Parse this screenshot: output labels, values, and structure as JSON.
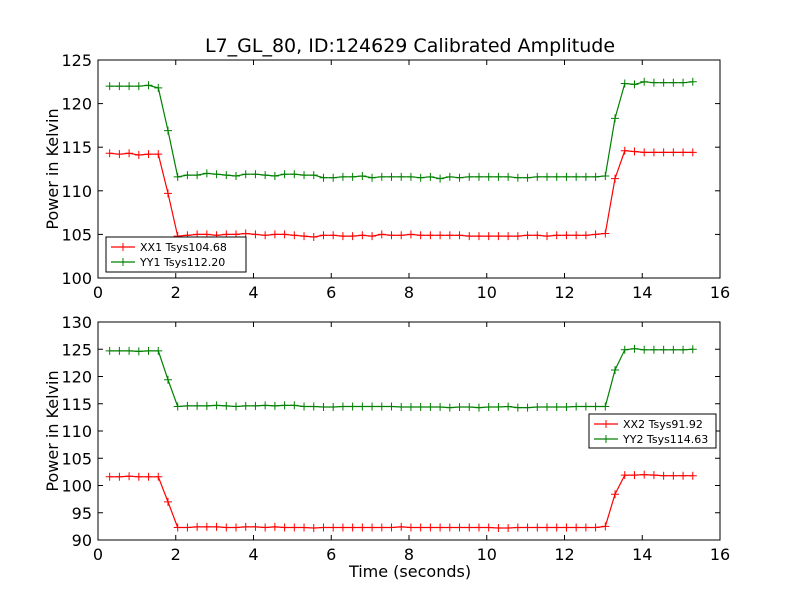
{
  "chart_data": {
    "type": "line",
    "title": "L7_GL_80, ID:124629 Calibrated Amplitude",
    "xlabel": "Time (seconds)",
    "grid": false,
    "x": [
      0.3,
      0.55,
      0.8,
      1.05,
      1.3,
      1.55,
      1.8,
      2.05,
      2.3,
      2.55,
      2.8,
      3.05,
      3.3,
      3.55,
      3.8,
      4.05,
      4.3,
      4.55,
      4.8,
      5.05,
      5.3,
      5.55,
      5.8,
      6.05,
      6.3,
      6.55,
      6.8,
      7.05,
      7.3,
      7.55,
      7.8,
      8.05,
      8.3,
      8.55,
      8.8,
      9.05,
      9.3,
      9.55,
      9.8,
      10.05,
      10.3,
      10.55,
      10.8,
      11.05,
      11.3,
      11.55,
      11.8,
      12.05,
      12.3,
      12.55,
      12.8,
      13.05,
      13.3,
      13.55,
      13.8,
      14.05,
      14.3,
      14.55,
      14.8,
      15.05,
      15.3
    ],
    "panels": [
      {
        "ylabel": "Power in Kelvin",
        "xlim": [
          0,
          16
        ],
        "ylim": [
          100,
          125
        ],
        "xticks": [
          0,
          2,
          4,
          6,
          8,
          10,
          12,
          14,
          16
        ],
        "yticks": [
          100,
          105,
          110,
          115,
          120,
          125
        ],
        "legend_position": "lower-left",
        "series": [
          {
            "name": "XX1 Tsys104.68",
            "color": "#ff0000",
            "values": [
              114.3,
              114.2,
              114.3,
              114.1,
              114.2,
              114.2,
              109.7,
              104.8,
              104.9,
              105.0,
              105.0,
              104.9,
              105.0,
              105.0,
              105.1,
              105.0,
              104.9,
              105.0,
              105.0,
              104.9,
              104.8,
              104.7,
              104.9,
              104.9,
              104.8,
              104.8,
              104.9,
              104.8,
              105.0,
              104.9,
              104.9,
              105.0,
              104.9,
              104.9,
              104.9,
              104.9,
              104.9,
              104.8,
              104.8,
              104.8,
              104.8,
              104.8,
              104.8,
              104.9,
              104.9,
              104.8,
              104.9,
              104.9,
              104.9,
              104.9,
              105.0,
              105.1,
              111.4,
              114.6,
              114.5,
              114.4,
              114.4,
              114.4,
              114.4,
              114.4,
              114.4
            ]
          },
          {
            "name": "YY1 Tsys112.20",
            "color": "#008000",
            "values": [
              122.0,
              122.0,
              122.0,
              122.0,
              122.1,
              121.8,
              116.9,
              111.6,
              111.8,
              111.8,
              112.0,
              111.9,
              111.8,
              111.7,
              111.9,
              111.9,
              111.8,
              111.7,
              111.9,
              111.9,
              111.8,
              111.8,
              111.5,
              111.5,
              111.6,
              111.6,
              111.7,
              111.5,
              111.6,
              111.6,
              111.6,
              111.6,
              111.5,
              111.6,
              111.4,
              111.6,
              111.5,
              111.6,
              111.6,
              111.6,
              111.6,
              111.6,
              111.5,
              111.5,
              111.6,
              111.6,
              111.6,
              111.6,
              111.6,
              111.6,
              111.6,
              111.7,
              118.3,
              122.3,
              122.2,
              122.5,
              122.4,
              122.4,
              122.4,
              122.4,
              122.5
            ]
          }
        ]
      },
      {
        "ylabel": "Power in Kelvin",
        "xlim": [
          0,
          16
        ],
        "ylim": [
          90,
          130
        ],
        "xticks": [
          0,
          2,
          4,
          6,
          8,
          10,
          12,
          14,
          16
        ],
        "yticks": [
          90,
          95,
          100,
          105,
          110,
          115,
          120,
          125,
          130
        ],
        "legend_position": "center-right",
        "series": [
          {
            "name": "XX2 Tsys91.92",
            "color": "#ff0000",
            "values": [
              101.6,
              101.6,
              101.7,
              101.6,
              101.6,
              101.6,
              97.0,
              92.3,
              92.3,
              92.4,
              92.4,
              92.4,
              92.3,
              92.3,
              92.4,
              92.4,
              92.3,
              92.4,
              92.3,
              92.3,
              92.3,
              92.2,
              92.3,
              92.3,
              92.3,
              92.3,
              92.3,
              92.3,
              92.3,
              92.3,
              92.4,
              92.3,
              92.3,
              92.3,
              92.3,
              92.3,
              92.3,
              92.3,
              92.3,
              92.3,
              92.2,
              92.2,
              92.3,
              92.3,
              92.3,
              92.3,
              92.3,
              92.3,
              92.3,
              92.3,
              92.3,
              92.5,
              98.4,
              101.9,
              101.9,
              102.0,
              101.9,
              101.8,
              101.8,
              101.8,
              101.8
            ]
          },
          {
            "name": "YY2 Tsys114.63",
            "color": "#008000",
            "values": [
              124.7,
              124.7,
              124.7,
              124.6,
              124.7,
              124.7,
              119.4,
              114.5,
              114.6,
              114.6,
              114.6,
              114.7,
              114.6,
              114.5,
              114.6,
              114.6,
              114.7,
              114.6,
              114.7,
              114.7,
              114.5,
              114.5,
              114.4,
              114.4,
              114.5,
              114.5,
              114.5,
              114.5,
              114.5,
              114.5,
              114.4,
              114.4,
              114.4,
              114.4,
              114.4,
              114.3,
              114.4,
              114.4,
              114.3,
              114.4,
              114.4,
              114.5,
              114.3,
              114.3,
              114.4,
              114.4,
              114.4,
              114.4,
              114.5,
              114.5,
              114.5,
              114.5,
              121.2,
              124.9,
              125.1,
              124.9,
              124.9,
              124.9,
              124.9,
              124.9,
              125.0
            ]
          }
        ]
      }
    ]
  }
}
